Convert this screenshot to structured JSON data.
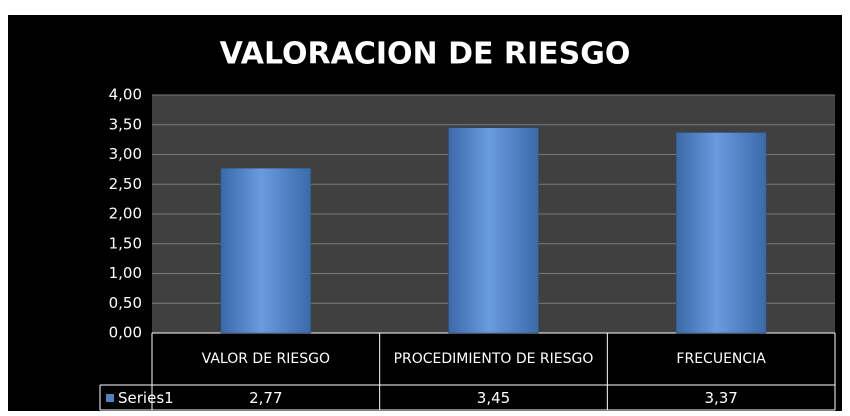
{
  "chart_data": {
    "type": "bar",
    "title": "VALORACION DE  RIESGO",
    "categories": [
      "VALOR DE RIESGO",
      "PROCEDIMIENTO DE RIESGO",
      "FRECUENCIA"
    ],
    "series": [
      {
        "name": "Series1",
        "color": "#4f81bd",
        "values": [
          2.77,
          3.45,
          3.37
        ],
        "value_labels": [
          "2,77",
          "3,45",
          "3,37"
        ]
      }
    ],
    "ylim": [
      0,
      4
    ],
    "yticks": [
      {
        "value": 0,
        "label": "0,00"
      },
      {
        "value": 0.5,
        "label": "0,50"
      },
      {
        "value": 1,
        "label": "1,00"
      },
      {
        "value": 1.5,
        "label": "1,50"
      },
      {
        "value": 2,
        "label": "2,00"
      },
      {
        "value": 2.5,
        "label": "2,50"
      },
      {
        "value": 3,
        "label": "3,00"
      },
      {
        "value": 3.5,
        "label": "3,50"
      },
      {
        "value": 4,
        "label": "4,00"
      }
    ],
    "grid": true
  }
}
